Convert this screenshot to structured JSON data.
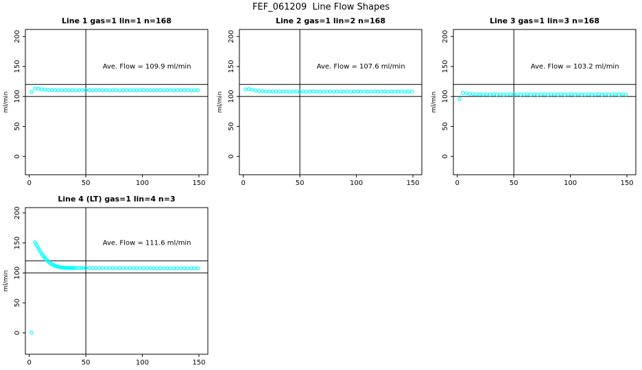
{
  "figure": {
    "title": "FEF_061209  Line Flow Shapes",
    "colors": {
      "points": "#00FFFF",
      "axis": "#000000",
      "background": "#FFFFFF"
    }
  },
  "chart_data": [
    {
      "type": "scatter",
      "title": "Line 1 gas=1 lin=1 n=168",
      "annotation": "Ave. Flow =  109.9  ml/min",
      "ave_flow_ml_min": 109.9,
      "xlabel": "",
      "ylabel": "ml/min",
      "xlim": [
        0,
        150
      ],
      "ylim": [
        0,
        200
      ],
      "xticks": [
        0,
        50,
        100,
        150
      ],
      "yticks": [
        0,
        50,
        100,
        150,
        200
      ],
      "hlines": [
        100,
        120
      ],
      "vline_x": 50,
      "grid": {
        "row": 0,
        "col": 0
      },
      "x": [
        2,
        5,
        8,
        11,
        14,
        17,
        20,
        23,
        26,
        29,
        32,
        35,
        38,
        41,
        44,
        47,
        50,
        53,
        56,
        59,
        62,
        65,
        68,
        71,
        74,
        77,
        80,
        83,
        86,
        89,
        92,
        95,
        98,
        101,
        104,
        107,
        110,
        113,
        116,
        119,
        122,
        125,
        128,
        131,
        134,
        137,
        140,
        143,
        146,
        149
      ],
      "y": [
        107.5,
        113.6,
        112.8,
        111.9,
        111.4,
        111.0,
        110.8,
        110.6,
        110.9,
        110.4,
        110.7,
        110.3,
        110.6,
        110.2,
        110.5,
        110.8,
        110.3,
        110.6,
        110.2,
        110.5,
        110.9,
        110.3,
        110.6,
        110.2,
        110.4,
        110.7,
        110.2,
        110.5,
        110.8,
        110.3,
        110.6,
        110.2,
        110.5,
        110.9,
        110.3,
        110.6,
        110.2,
        110.4,
        110.7,
        110.3,
        110.5,
        110.9,
        110.2,
        110.6,
        110.3,
        110.5,
        110.8,
        110.2,
        110.6,
        110.4
      ]
    },
    {
      "type": "scatter",
      "title": "Line 2 gas=1 lin=2 n=168",
      "annotation": "Ave. Flow =  107.6  ml/min",
      "ave_flow_ml_min": 107.6,
      "xlabel": "",
      "ylabel": "ml/min",
      "xlim": [
        0,
        150
      ],
      "ylim": [
        0,
        200
      ],
      "xticks": [
        0,
        50,
        100,
        150
      ],
      "yticks": [
        0,
        50,
        100,
        150,
        200
      ],
      "hlines": [
        100,
        120
      ],
      "vline_x": 50,
      "grid": {
        "row": 0,
        "col": 1
      },
      "x": [
        2,
        5,
        8,
        11,
        14,
        17,
        20,
        23,
        26,
        29,
        32,
        35,
        38,
        41,
        44,
        47,
        50,
        53,
        56,
        59,
        62,
        65,
        68,
        71,
        74,
        77,
        80,
        83,
        86,
        89,
        92,
        95,
        98,
        101,
        104,
        107,
        110,
        113,
        116,
        119,
        122,
        125,
        128,
        131,
        134,
        137,
        140,
        143,
        146,
        149
      ],
      "y": [
        111.8,
        112.4,
        111.2,
        110.0,
        109.2,
        108.7,
        108.4,
        108.2,
        108.5,
        108.1,
        108.4,
        108.0,
        108.3,
        107.9,
        108.2,
        108.5,
        108.0,
        108.3,
        107.9,
        108.2,
        108.6,
        108.0,
        108.3,
        107.9,
        108.1,
        108.4,
        107.9,
        108.2,
        108.5,
        108.0,
        108.3,
        107.9,
        108.2,
        108.6,
        108.0,
        108.3,
        107.9,
        108.1,
        108.4,
        108.0,
        108.2,
        108.6,
        107.9,
        108.3,
        108.0,
        108.2,
        108.5,
        107.9,
        108.3,
        108.1
      ]
    },
    {
      "type": "scatter",
      "title": "Line 3 gas=1 lin=3 n=168",
      "annotation": "Ave. Flow =  103.2  ml/min",
      "ave_flow_ml_min": 103.2,
      "xlabel": "",
      "ylabel": "ml/min",
      "xlim": [
        0,
        150
      ],
      "ylim": [
        0,
        200
      ],
      "xticks": [
        0,
        50,
        100,
        150
      ],
      "yticks": [
        0,
        50,
        100,
        150,
        200
      ],
      "hlines": [
        100,
        120
      ],
      "vline_x": 50,
      "grid": {
        "row": 0,
        "col": 2
      },
      "x": [
        2,
        5,
        8,
        11,
        14,
        17,
        20,
        23,
        26,
        29,
        32,
        35,
        38,
        41,
        44,
        47,
        50,
        53,
        56,
        59,
        62,
        65,
        68,
        71,
        74,
        77,
        80,
        83,
        86,
        89,
        92,
        95,
        98,
        101,
        104,
        107,
        110,
        113,
        116,
        119,
        122,
        125,
        128,
        131,
        134,
        137,
        140,
        143,
        146,
        149
      ],
      "y": [
        95.5,
        106.0,
        105.3,
        104.5,
        104.0,
        103.7,
        103.5,
        103.3,
        103.6,
        103.2,
        103.5,
        103.1,
        103.4,
        103.0,
        103.3,
        103.6,
        103.1,
        103.4,
        103.0,
        103.3,
        103.7,
        103.1,
        103.4,
        103.0,
        103.2,
        103.5,
        103.0,
        103.3,
        103.6,
        103.1,
        103.4,
        103.0,
        103.3,
        103.7,
        103.1,
        103.4,
        103.0,
        103.2,
        103.5,
        103.1,
        103.3,
        103.7,
        103.0,
        103.4,
        103.1,
        103.3,
        103.6,
        103.0,
        103.4,
        103.2
      ]
    },
    {
      "type": "scatter",
      "title": "Line 4 (LT) gas=1 lin=4 n=3",
      "annotation": "Ave. Flow =  111.6  ml/min",
      "ave_flow_ml_min": 111.6,
      "xlabel": "",
      "ylabel": "ml/min",
      "xlim": [
        0,
        150
      ],
      "ylim": [
        0,
        200
      ],
      "xticks": [
        0,
        50,
        100,
        150
      ],
      "yticks": [
        0,
        50,
        100,
        150,
        200
      ],
      "hlines": [
        100,
        120
      ],
      "vline_x": 50,
      "grid": {
        "row": 1,
        "col": 0
      },
      "x": [
        2,
        5,
        6,
        7,
        8,
        9,
        10,
        11,
        12,
        13,
        14,
        15,
        16,
        17,
        18,
        19,
        20,
        21,
        22,
        23,
        24,
        25,
        26,
        27,
        28,
        29,
        30,
        31,
        32,
        33,
        34,
        35,
        36,
        37,
        38,
        39,
        40,
        42,
        44,
        46,
        48,
        50,
        53,
        56,
        59,
        62,
        65,
        68,
        71,
        74,
        77,
        80,
        83,
        86,
        89,
        92,
        95,
        98,
        101,
        104,
        107,
        110,
        113,
        116,
        119,
        122,
        125,
        128,
        131,
        134,
        137,
        140,
        143,
        146,
        149
      ],
      "y": [
        0.5,
        151.0,
        148.0,
        144.6,
        141.2,
        137.9,
        134.8,
        131.9,
        129.2,
        126.7,
        124.4,
        122.3,
        120.4,
        118.7,
        117.2,
        115.8,
        114.6,
        113.5,
        112.6,
        111.8,
        111.1,
        110.5,
        110.0,
        109.6,
        109.3,
        109.0,
        108.8,
        108.7,
        108.6,
        108.5,
        108.5,
        108.4,
        108.4,
        108.3,
        108.3,
        108.3,
        108.2,
        108.2,
        108.2,
        108.1,
        108.1,
        108.1,
        108.1,
        108.0,
        108.0,
        108.0,
        108.0,
        108.0,
        107.9,
        107.9,
        107.9,
        107.9,
        107.9,
        107.9,
        107.8,
        107.8,
        107.8,
        107.8,
        107.8,
        107.8,
        107.8,
        107.7,
        107.7,
        107.7,
        107.7,
        107.7,
        107.7,
        107.7,
        107.6,
        107.6,
        107.6,
        107.6,
        107.6,
        107.6,
        107.6
      ]
    }
  ]
}
